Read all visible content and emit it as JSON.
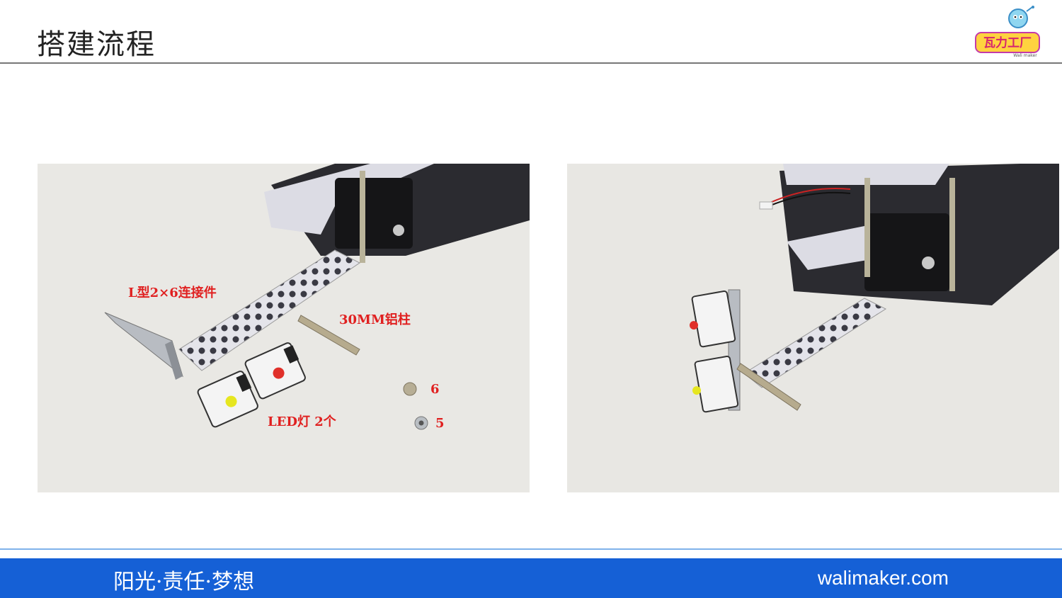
{
  "header": {
    "title": "搭建流程"
  },
  "logo": {
    "text": "瓦力工厂",
    "subtext": "Wali maker"
  },
  "left_photo": {
    "labels": {
      "connector": "L型2×6连接件",
      "pillar": "30MM铝柱",
      "screw_count": "6",
      "led": "LED灯 2个",
      "nut_count": "5"
    }
  },
  "footer": {
    "slogan": "阳光·责任·梦想",
    "website": "walimaker.com"
  },
  "colors": {
    "footer_bg": "#1560d6",
    "footer_line": "#7fb2ea",
    "label_red": "#e02020",
    "photo_bg": "#e9e8e4"
  }
}
